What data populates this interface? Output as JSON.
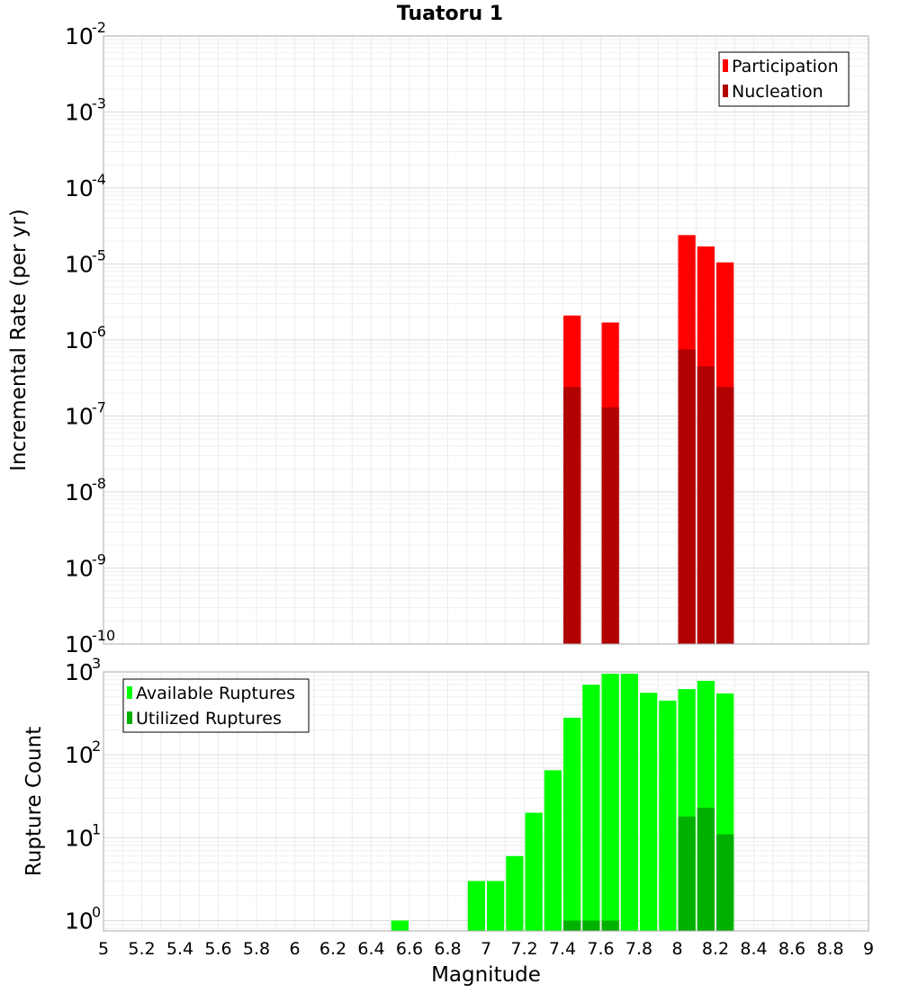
{
  "chart_data": [
    {
      "type": "bar",
      "title": "Tuatoru 1",
      "xlabel": "",
      "ylabel": "Incremental Rate (per yr)",
      "yscale": "log",
      "ylim": [
        1e-10,
        0.01
      ],
      "xlim": [
        5,
        9
      ],
      "grid": true,
      "legend": "top-right",
      "y_ticks": [
        {
          "base": "10",
          "exp": "-10"
        },
        {
          "base": "10",
          "exp": "-9"
        },
        {
          "base": "10",
          "exp": "-8"
        },
        {
          "base": "10",
          "exp": "-7"
        },
        {
          "base": "10",
          "exp": "-6"
        },
        {
          "base": "10",
          "exp": "-5"
        },
        {
          "base": "10",
          "exp": "-4"
        },
        {
          "base": "10",
          "exp": "-3"
        },
        {
          "base": "10",
          "exp": "-2"
        }
      ],
      "series": [
        {
          "name": "Participation",
          "color": "#ff0000",
          "x": [
            7.45,
            7.65,
            8.05,
            8.15,
            8.25
          ],
          "values": [
            2.1e-06,
            1.7e-06,
            2.4e-05,
            1.7e-05,
            1.05e-05
          ]
        },
        {
          "name": "Nucleation",
          "color": "#b00000",
          "x": [
            7.45,
            7.65,
            8.05,
            8.15,
            8.25
          ],
          "values": [
            2.4e-07,
            1.3e-07,
            7.5e-07,
            4.5e-07,
            2.4e-07
          ]
        }
      ]
    },
    {
      "type": "bar",
      "title": "",
      "xlabel": "Magnitude",
      "ylabel": "Rupture Count",
      "yscale": "log",
      "ylim": [
        0.75,
        1000
      ],
      "xlim": [
        5,
        9
      ],
      "grid": true,
      "legend": "top-left",
      "y_ticks": [
        {
          "base": "10",
          "exp": "0"
        },
        {
          "base": "10",
          "exp": "1"
        },
        {
          "base": "10",
          "exp": "2"
        },
        {
          "base": "10",
          "exp": "3"
        }
      ],
      "x_tick_labels": [
        "5",
        "5.2",
        "5.4",
        "5.6",
        "5.8",
        "6",
        "6.2",
        "6.4",
        "6.6",
        "6.8",
        "7",
        "7.2",
        "7.4",
        "7.6",
        "7.8",
        "8",
        "8.2",
        "8.4",
        "8.6",
        "8.8",
        "9"
      ],
      "series": [
        {
          "name": "Available Ruptures",
          "color": "#00ff00",
          "x": [
            6.55,
            6.95,
            7.05,
            7.15,
            7.25,
            7.35,
            7.45,
            7.55,
            7.65,
            7.75,
            7.85,
            7.95,
            8.05,
            8.15,
            8.25
          ],
          "values": [
            1,
            3,
            3,
            6,
            20,
            65,
            280,
            700,
            950,
            950,
            560,
            450,
            620,
            780,
            550
          ]
        },
        {
          "name": "Utilized Ruptures",
          "color": "#00b000",
          "x": [
            7.45,
            7.55,
            7.65,
            8.05,
            8.15,
            8.25
          ],
          "values": [
            1,
            1,
            1,
            18,
            23,
            11
          ]
        }
      ]
    }
  ]
}
